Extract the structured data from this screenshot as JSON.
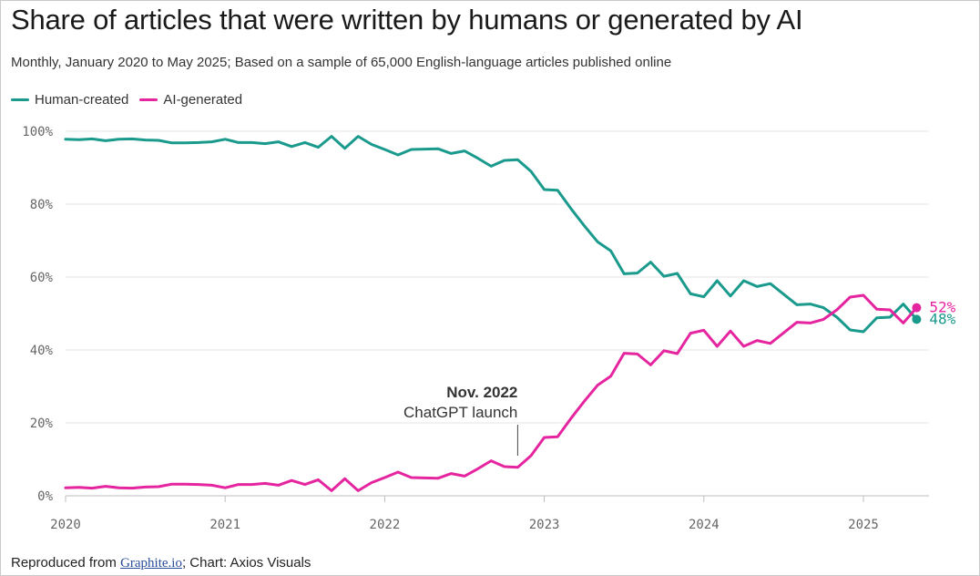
{
  "chart_data": {
    "type": "line",
    "title": "Share of articles that were written by humans or generated by AI",
    "subtitle": "Monthly, January 2020 to May 2025; Based on a sample of 65,000 English-language articles published online",
    "ylim": [
      0,
      100
    ],
    "y_ticks": [
      "100%",
      "80%",
      "60%",
      "40%",
      "20%",
      "0%"
    ],
    "y_tick_values": [
      100,
      80,
      60,
      40,
      20,
      0
    ],
    "x_ticks": [
      "2020",
      "2021",
      "2022",
      "2023",
      "2024",
      "2025"
    ],
    "x_tick_values": [
      "2020-01",
      "2021-01",
      "2022-01",
      "2023-01",
      "2024-01",
      "2025-01"
    ],
    "grid": true,
    "legend_position": "top-left",
    "x": [
      "2020-01",
      "2020-02",
      "2020-03",
      "2020-04",
      "2020-05",
      "2020-06",
      "2020-07",
      "2020-08",
      "2020-09",
      "2020-10",
      "2020-11",
      "2020-12",
      "2021-01",
      "2021-02",
      "2021-03",
      "2021-04",
      "2021-05",
      "2021-06",
      "2021-07",
      "2021-08",
      "2021-09",
      "2021-10",
      "2021-11",
      "2021-12",
      "2022-01",
      "2022-02",
      "2022-03",
      "2022-04",
      "2022-05",
      "2022-06",
      "2022-07",
      "2022-08",
      "2022-09",
      "2022-10",
      "2022-11",
      "2022-12",
      "2023-01",
      "2023-02",
      "2023-03",
      "2023-04",
      "2023-05",
      "2023-06",
      "2023-07",
      "2023-08",
      "2023-09",
      "2023-10",
      "2023-11",
      "2023-12",
      "2024-01",
      "2024-02",
      "2024-03",
      "2024-04",
      "2024-05",
      "2024-06",
      "2024-07",
      "2024-08",
      "2024-09",
      "2024-10",
      "2024-11",
      "2024-12",
      "2025-01",
      "2025-02",
      "2025-03",
      "2025-04",
      "2025-05"
    ],
    "series": [
      {
        "name": "Human-created",
        "color": "#1a9a8c",
        "end_label": "48%",
        "values": [
          97.8,
          97.7,
          97.9,
          97.4,
          97.8,
          97.9,
          97.6,
          97.5,
          96.8,
          96.8,
          96.9,
          97.1,
          97.8,
          96.9,
          96.9,
          96.6,
          97.1,
          95.8,
          96.9,
          95.6,
          98.6,
          95.3,
          98.6,
          96.4,
          95.0,
          93.5,
          95.0,
          95.1,
          95.2,
          93.9,
          94.6,
          92.6,
          90.4,
          92.0,
          92.2,
          89.0,
          84.0,
          83.8,
          78.8,
          74.1,
          69.7,
          67.2,
          60.9,
          61.1,
          64.1,
          60.2,
          61.0,
          55.4,
          54.6,
          59.0,
          54.8,
          59.0,
          57.4,
          58.2,
          55.3,
          52.4,
          52.6,
          51.6,
          49.0,
          45.5,
          45.0,
          48.8,
          49.0,
          52.6,
          48.4
        ]
      },
      {
        "name": "AI-generated",
        "color": "#e5259f",
        "end_label": "52%",
        "values": [
          2.2,
          2.3,
          2.1,
          2.6,
          2.2,
          2.1,
          2.4,
          2.5,
          3.2,
          3.2,
          3.1,
          2.9,
          2.2,
          3.1,
          3.1,
          3.4,
          2.9,
          4.2,
          3.1,
          4.4,
          1.4,
          4.7,
          1.4,
          3.6,
          5.0,
          6.5,
          5.0,
          4.9,
          4.8,
          6.1,
          5.4,
          7.4,
          9.6,
          8.0,
          7.8,
          11.0,
          16.0,
          16.2,
          21.2,
          25.9,
          30.3,
          32.8,
          39.1,
          38.9,
          35.9,
          39.8,
          39.0,
          44.6,
          45.4,
          41.0,
          45.2,
          41.0,
          42.6,
          41.8,
          44.7,
          47.6,
          47.4,
          48.4,
          51.0,
          54.5,
          55.0,
          51.2,
          51.0,
          47.4,
          51.6
        ]
      }
    ],
    "annotation": {
      "x": "2022-11",
      "title": "Nov. 2022",
      "text": "ChatGPT launch"
    }
  },
  "legend": {
    "human_label": "Human-created",
    "ai_label": "AI-generated"
  },
  "footer": {
    "prefix": "Reproduced from ",
    "link_text": "Graphite.io",
    "suffix": "; Chart: Axios Visuals"
  }
}
